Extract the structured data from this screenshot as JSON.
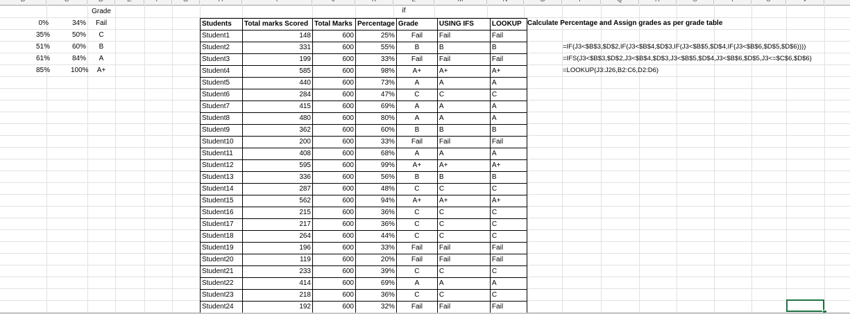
{
  "columns": [
    "B",
    "C",
    "D",
    "E",
    "F",
    "G",
    "H",
    "I",
    "J",
    "K",
    "L",
    "M",
    "N",
    "O",
    "P",
    "Q",
    "R",
    "S",
    "T",
    "U",
    "V"
  ],
  "grade_table": {
    "header": "Grade",
    "rows": [
      {
        "from": "0%",
        "to": "34%",
        "grade": "Fail"
      },
      {
        "from": "35%",
        "to": "50%",
        "grade": "C"
      },
      {
        "from": "51%",
        "to": "60%",
        "grade": "B"
      },
      {
        "from": "61%",
        "to": "84%",
        "grade": "A"
      },
      {
        "from": "85%",
        "to": "100%",
        "grade": "A+"
      }
    ]
  },
  "if_label": "if",
  "instruction": "Calculate Percentage and Assign grades as per grade table",
  "formulas": {
    "if_formula": "=IF(J3<$B$3,$D$2,IF(J3<$B$4,$D$3,IF(J3<$B$5,$D$4,IF(J3<$B$6,$D$5,$D$6))))",
    "ifs_formula": "=IFS(J3<$B$3,$D$2,J3<$B$4,$D$3,J3<$B$5,$D$4,J3<$B$6,$D$5,J3<=$C$6,$D$6)",
    "lookup_formula": "=LOOKUP(J3:J26,B2:C6,D2:D6)"
  },
  "main_table": {
    "headers": [
      "Students",
      "Total marks Scored",
      "Total Marks",
      "Percentage",
      "Grade",
      "USING IFS",
      "LOOKUP"
    ],
    "rows": [
      [
        "Student1",
        "148",
        "600",
        "25%",
        "Fail",
        "Fail",
        "Fail"
      ],
      [
        "Student2",
        "331",
        "600",
        "55%",
        "B",
        "B",
        "B"
      ],
      [
        "Student3",
        "199",
        "600",
        "33%",
        "Fail",
        "Fail",
        "Fail"
      ],
      [
        "Student4",
        "585",
        "600",
        "98%",
        "A+",
        "A+",
        "A+"
      ],
      [
        "Student5",
        "440",
        "600",
        "73%",
        "A",
        "A",
        "A"
      ],
      [
        "Student6",
        "284",
        "600",
        "47%",
        "C",
        "C",
        "C"
      ],
      [
        "Student7",
        "415",
        "600",
        "69%",
        "A",
        "A",
        "A"
      ],
      [
        "Student8",
        "480",
        "600",
        "80%",
        "A",
        "A",
        "A"
      ],
      [
        "Student9",
        "362",
        "600",
        "60%",
        "B",
        "B",
        "B"
      ],
      [
        "Student10",
        "200",
        "600",
        "33%",
        "Fail",
        "Fail",
        "Fail"
      ],
      [
        "Student11",
        "408",
        "600",
        "68%",
        "A",
        "A",
        "A"
      ],
      [
        "Student12",
        "595",
        "600",
        "99%",
        "A+",
        "A+",
        "A+"
      ],
      [
        "Student13",
        "336",
        "600",
        "56%",
        "B",
        "B",
        "B"
      ],
      [
        "Student14",
        "287",
        "600",
        "48%",
        "C",
        "C",
        "C"
      ],
      [
        "Student15",
        "562",
        "600",
        "94%",
        "A+",
        "A+",
        "A+"
      ],
      [
        "Student16",
        "215",
        "600",
        "36%",
        "C",
        "C",
        "C"
      ],
      [
        "Student17",
        "217",
        "600",
        "36%",
        "C",
        "C",
        "C"
      ],
      [
        "Student18",
        "264",
        "600",
        "44%",
        "C",
        "C",
        "C"
      ],
      [
        "Student19",
        "196",
        "600",
        "33%",
        "Fail",
        "Fail",
        "Fail"
      ],
      [
        "Student20",
        "119",
        "600",
        "20%",
        "Fail",
        "Fail",
        "Fail"
      ],
      [
        "Student21",
        "233",
        "600",
        "39%",
        "C",
        "C",
        "C"
      ],
      [
        "Student22",
        "414",
        "600",
        "69%",
        "A",
        "A",
        "A"
      ],
      [
        "Student23",
        "218",
        "600",
        "36%",
        "C",
        "C",
        "C"
      ],
      [
        "Student24",
        "192",
        "600",
        "32%",
        "Fail",
        "Fail",
        "Fail"
      ]
    ]
  },
  "colors": {
    "selection": "#217346",
    "gridline": "#e1e1e1"
  }
}
